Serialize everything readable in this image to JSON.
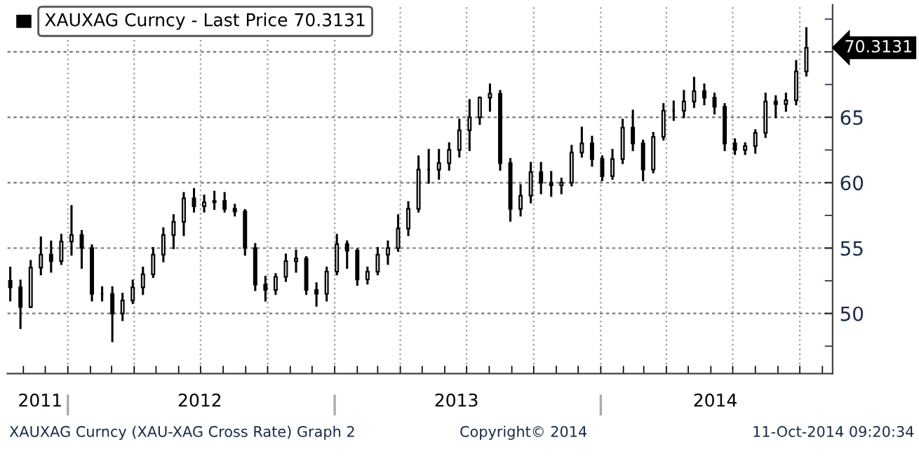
{
  "chart_data": {
    "type": "candlestick",
    "x": [
      "2011-10-14",
      "2011-10-28",
      "2011-11-11",
      "2011-11-25",
      "2011-12-09",
      "2011-12-23",
      "2012-01-06",
      "2012-01-20",
      "2012-02-03",
      "2012-02-17",
      "2012-03-02",
      "2012-03-16",
      "2012-03-30",
      "2012-04-13",
      "2012-04-27",
      "2012-05-11",
      "2012-05-25",
      "2012-06-08",
      "2012-06-22",
      "2012-07-06",
      "2012-07-20",
      "2012-08-03",
      "2012-08-17",
      "2012-08-31",
      "2012-09-14",
      "2012-09-28",
      "2012-10-12",
      "2012-10-26",
      "2012-11-09",
      "2012-11-23",
      "2012-12-07",
      "2012-12-21",
      "2013-01-04",
      "2013-01-18",
      "2013-02-01",
      "2013-02-15",
      "2013-03-01",
      "2013-03-15",
      "2013-03-29",
      "2013-04-12",
      "2013-04-26",
      "2013-05-10",
      "2013-05-24",
      "2013-06-07",
      "2013-06-21",
      "2013-07-05",
      "2013-07-19",
      "2013-08-02",
      "2013-08-16",
      "2013-08-30",
      "2013-09-13",
      "2013-09-27",
      "2013-10-11",
      "2013-10-25",
      "2013-11-08",
      "2013-11-22",
      "2013-12-06",
      "2013-12-20",
      "2014-01-03",
      "2014-01-17",
      "2014-01-31",
      "2014-02-14",
      "2014-02-28",
      "2014-03-14",
      "2014-03-28",
      "2014-04-11",
      "2014-04-25",
      "2014-05-09",
      "2014-05-23",
      "2014-06-06",
      "2014-06-20",
      "2014-07-04",
      "2014-07-18",
      "2014-08-01",
      "2014-08-15",
      "2014-08-29",
      "2014-09-12",
      "2014-09-26",
      "2014-10-10"
    ],
    "ohlc": [
      [
        52.5,
        53.5,
        51,
        52
      ],
      [
        52,
        52.5,
        48.9,
        50.5
      ],
      [
        50.5,
        54,
        50.5,
        53.5
      ],
      [
        53.5,
        55.8,
        53,
        54.5
      ],
      [
        54.5,
        55.5,
        53.2,
        54
      ],
      [
        54,
        56,
        53.8,
        55.5
      ],
      [
        55.5,
        58.2,
        54.5,
        56
      ],
      [
        56,
        56.3,
        53.5,
        55
      ],
      [
        55,
        55.2,
        51,
        51.5
      ],
      [
        51.5,
        52,
        51,
        51.5
      ],
      [
        51.5,
        52,
        47.9,
        50
      ],
      [
        50,
        51.5,
        49.5,
        51
      ],
      [
        51,
        52.5,
        50.8,
        52
      ],
      [
        52,
        53.5,
        51.5,
        53
      ],
      [
        53,
        55,
        52.8,
        54.5
      ],
      [
        54.5,
        56.5,
        54,
        56
      ],
      [
        56,
        57.5,
        55,
        57
      ],
      [
        57,
        59.2,
        56,
        58.8
      ],
      [
        58.8,
        59.5,
        57.8,
        58.2
      ],
      [
        58.2,
        59,
        57.8,
        58.5
      ],
      [
        58.5,
        59.3,
        58,
        58.6
      ],
      [
        58.6,
        59.2,
        57.8,
        58
      ],
      [
        58,
        58.3,
        57.5,
        57.8
      ],
      [
        57.8,
        57.9,
        54.5,
        55
      ],
      [
        55,
        55.3,
        51.8,
        52.2
      ],
      [
        52.2,
        52.8,
        51,
        51.8
      ],
      [
        51.8,
        53,
        51.5,
        52.8
      ],
      [
        52.8,
        54.5,
        52.5,
        54
      ],
      [
        54,
        54.8,
        53.2,
        54.2
      ],
      [
        54.2,
        54.3,
        51.5,
        51.8
      ],
      [
        51.8,
        52.3,
        50.6,
        51.5
      ],
      [
        51.5,
        53.5,
        51,
        53.2
      ],
      [
        53.2,
        56,
        53,
        55.3
      ],
      [
        55.3,
        55.5,
        53.5,
        54.8
      ],
      [
        54.8,
        54.9,
        52.2,
        52.6
      ],
      [
        52.6,
        53.5,
        52.3,
        53.2
      ],
      [
        53.2,
        55,
        53,
        54.5
      ],
      [
        54.5,
        55.5,
        53.8,
        55
      ],
      [
        55,
        57.5,
        54.8,
        56.5
      ],
      [
        56.5,
        58.5,
        56,
        58
      ],
      [
        58,
        62,
        57.8,
        61
      ],
      [
        61,
        62.5,
        60,
        61
      ],
      [
        61,
        62.5,
        60.3,
        61.5
      ],
      [
        61.5,
        63,
        61,
        62.5
      ],
      [
        62.5,
        64.8,
        62,
        64
      ],
      [
        64,
        66.3,
        62.5,
        65
      ],
      [
        65,
        66.5,
        64.5,
        66.5
      ],
      [
        66.5,
        67.5,
        65.5,
        66.8
      ],
      [
        66.8,
        67,
        61,
        61.5
      ],
      [
        61.5,
        61.8,
        57.1,
        58
      ],
      [
        58,
        59.8,
        57.5,
        59
      ],
      [
        59,
        61.5,
        58.5,
        60.8
      ],
      [
        60.8,
        61.5,
        59.2,
        60
      ],
      [
        60,
        60.8,
        59,
        59.8
      ],
      [
        59.8,
        60.3,
        59.2,
        60
      ],
      [
        60,
        62.8,
        59.8,
        62.3
      ],
      [
        62.3,
        64.2,
        62,
        63
      ],
      [
        63,
        63.5,
        61.3,
        61.8
      ],
      [
        61.8,
        62,
        60.2,
        60.5
      ],
      [
        60.5,
        62.5,
        60.3,
        61.8
      ],
      [
        61.8,
        64.8,
        61.5,
        64.2
      ],
      [
        64.2,
        65.5,
        62.5,
        63
      ],
      [
        63,
        63.2,
        60.2,
        61
      ],
      [
        61,
        63.8,
        60.8,
        63.5
      ],
      [
        63.5,
        66,
        63.3,
        65.5
      ],
      [
        65.5,
        66.2,
        64.8,
        65.5
      ],
      [
        65.5,
        67,
        65,
        66.2
      ],
      [
        66.2,
        68,
        65.8,
        67
      ],
      [
        67,
        67.5,
        66,
        66.5
      ],
      [
        66.5,
        66.8,
        65.3,
        65.8
      ],
      [
        65.8,
        66,
        62.5,
        63
      ],
      [
        63,
        63.3,
        62.2,
        62.5
      ],
      [
        62.5,
        63,
        62.2,
        62.8
      ],
      [
        62.8,
        64,
        62.3,
        63.8
      ],
      [
        63.8,
        66.8,
        63.5,
        66.2
      ],
      [
        66.2,
        66.6,
        65,
        66
      ],
      [
        66,
        66.8,
        65.5,
        66.3
      ],
      [
        66.3,
        69.3,
        66,
        68.5
      ],
      [
        68.5,
        71.8,
        68.2,
        70.3131
      ]
    ],
    "title": "XAUXAG Curncy - Last Price 70.3131",
    "color": "#000000",
    "xlim": [
      "2011-10-10",
      "2014-11-15"
    ],
    "xticks": [
      {
        "value": "2011-11-24",
        "label": "2011"
      },
      {
        "value": "2012-06-30",
        "label": "2012"
      },
      {
        "value": "2013-06-17",
        "label": "2013"
      },
      {
        "value": "2014-06-07",
        "label": "2014"
      },
      {
        "value": "2011-11-01",
        "label": null
      },
      {
        "value": "2011-12-01",
        "label": null
      },
      {
        "value": "2012-01-01",
        "label": null
      },
      {
        "value": "2012-02-01",
        "label": null
      },
      {
        "value": "2012-03-01",
        "label": null
      },
      {
        "value": "2012-04-01",
        "label": null
      },
      {
        "value": "2012-05-01",
        "label": null
      },
      {
        "value": "2012-06-01",
        "label": null
      },
      {
        "value": "2012-07-01",
        "label": null
      },
      {
        "value": "2012-08-01",
        "label": null
      },
      {
        "value": "2012-09-01",
        "label": null
      },
      {
        "value": "2012-10-01",
        "label": null
      },
      {
        "value": "2012-11-01",
        "label": null
      },
      {
        "value": "2012-12-01",
        "label": null
      },
      {
        "value": "2013-01-01",
        "label": null
      },
      {
        "value": "2013-02-01",
        "label": null
      },
      {
        "value": "2013-03-01",
        "label": null
      },
      {
        "value": "2013-04-01",
        "label": null
      },
      {
        "value": "2013-05-01",
        "label": null
      },
      {
        "value": "2013-06-01",
        "label": null
      },
      {
        "value": "2013-07-01",
        "label": null
      },
      {
        "value": "2013-08-01",
        "label": null
      },
      {
        "value": "2013-09-01",
        "label": null
      },
      {
        "value": "2013-10-01",
        "label": null
      },
      {
        "value": "2013-11-01",
        "label": null
      },
      {
        "value": "2013-12-01",
        "label": null
      },
      {
        "value": "2014-01-01",
        "label": null
      },
      {
        "value": "2014-02-01",
        "label": null
      },
      {
        "value": "2014-03-01",
        "label": null
      },
      {
        "value": "2014-04-01",
        "label": null
      },
      {
        "value": "2014-05-01",
        "label": null
      },
      {
        "value": "2014-06-01",
        "label": null
      },
      {
        "value": "2014-07-01",
        "label": null
      },
      {
        "value": "2014-08-01",
        "label": null
      },
      {
        "value": "2014-09-01",
        "label": null
      },
      {
        "value": "2014-10-01",
        "label": null
      },
      {
        "value": "2014-11-01",
        "label": null
      }
    ],
    "ylim": [
      45.4,
      73.6
    ],
    "yticks": [
      50,
      55,
      60,
      65,
      {
        "value": 47.5,
        "label": null
      },
      {
        "value": 52.5,
        "label": null
      },
      {
        "value": 57.5,
        "label": null
      },
      {
        "value": 62.5,
        "label": null
      },
      {
        "value": 67.5,
        "label": null
      },
      {
        "value": 70,
        "label": null
      },
      {
        "value": 72.5,
        "label": null
      }
    ],
    "grid": true,
    "annotations": [
      "XAUXAG Curncy (XAU-XAG Cross Rate) Graph 2",
      "Copyright© 2014",
      "11-Oct-2014 09:20:34",
      "70.3131"
    ]
  }
}
